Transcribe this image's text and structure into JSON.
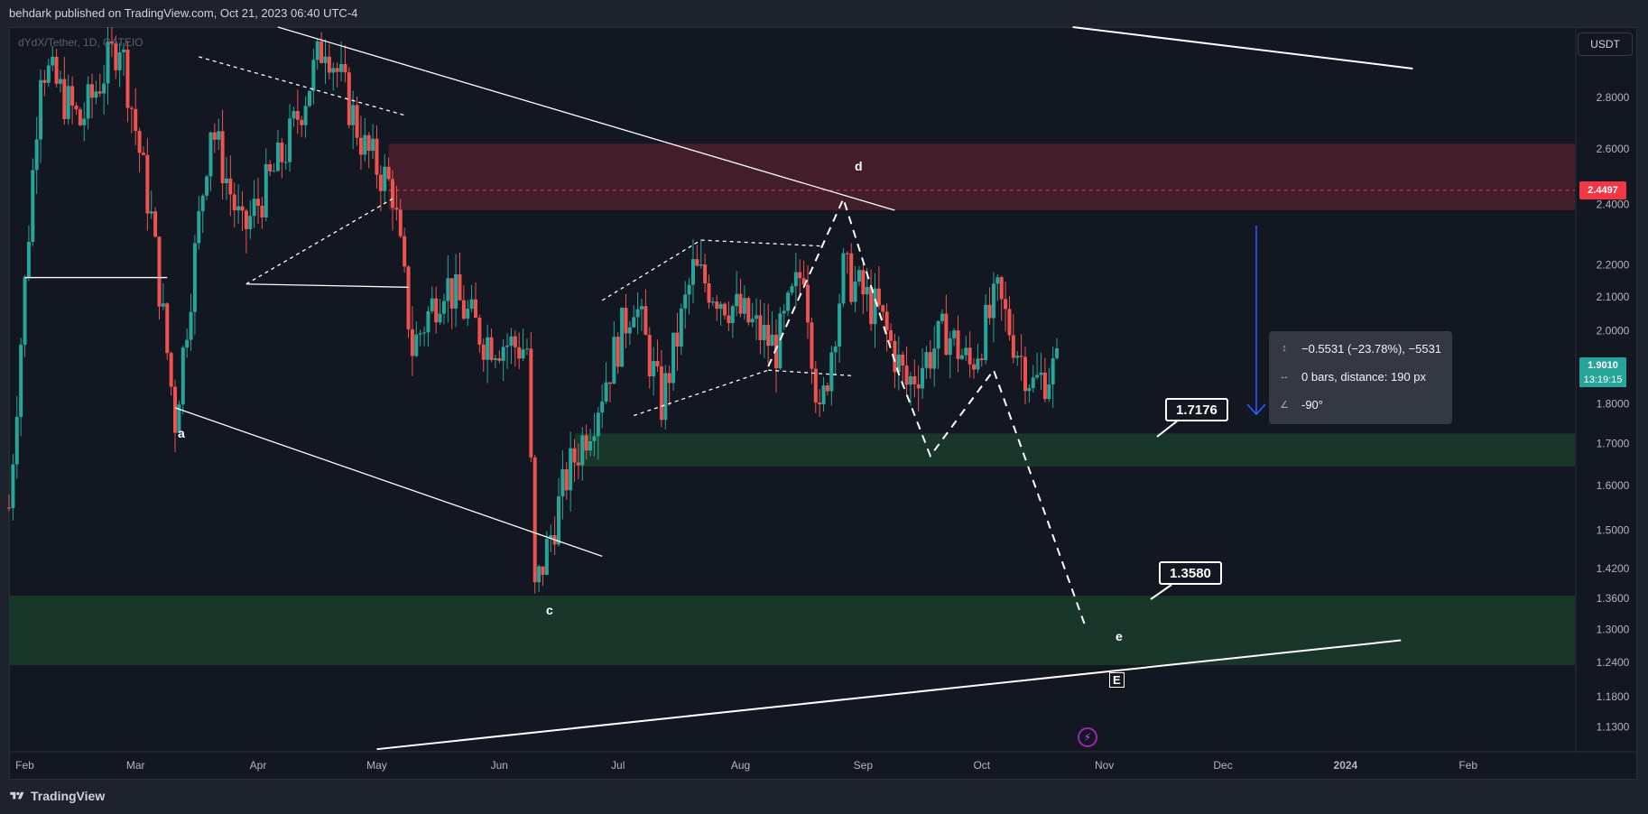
{
  "header": {
    "publisher_text": "behdark published on TradingView.com, Oct 21, 2023 06:40 UTC-4"
  },
  "symbol": {
    "label": "dYdX/Tether, 1D, GATEIO"
  },
  "currency_button": "USDT",
  "footer": {
    "brand": "TradingView",
    "logo_icon": "tradingview-logo-icon"
  },
  "measure": {
    "change": "−0.5531 (−23.78%), −5531",
    "bars": "0 bars, distance: 190 px",
    "angle": "-90°",
    "icons": [
      "price-range-icon",
      "bar-range-icon",
      "angle-icon"
    ]
  },
  "price_tags": {
    "resistance": "2.4497",
    "last_price": "1.9010",
    "countdown": "13:19:15"
  },
  "callouts": {
    "target1": "1.7176",
    "target2": "1.3580"
  },
  "wave_labels": {
    "a": "a",
    "c": "c",
    "d": "d",
    "e": "e",
    "E": "E"
  },
  "colors": {
    "background": "#131722",
    "up_candle": "#26a69a",
    "down_candle": "#ef5350",
    "supply_zone": "#4a1e2c",
    "demand_zone": "#1b3a2b",
    "resistance_tag": "#f23645",
    "measure_arrow": "#2962ff",
    "drawing": "#ffffff"
  },
  "chart_data": {
    "type": "candlestick",
    "title": "dYdX/Tether, 1D, GATEIO",
    "y_axis_scale": "log",
    "y_ticks": [
      "2.8000",
      "2.6000",
      "2.4000",
      "2.2000",
      "2.1000",
      "2.0000",
      "1.8000",
      "1.7000",
      "1.6000",
      "1.5000",
      "1.4200",
      "1.3600",
      "1.3000",
      "1.2400",
      "1.1800",
      "1.1300"
    ],
    "x_ticks": [
      "Feb",
      "Mar",
      "Apr",
      "May",
      "Jun",
      "Jul",
      "Aug",
      "Sep",
      "Oct",
      "Nov",
      "Dec",
      "2024",
      "Feb"
    ],
    "ylim": [
      1.09,
      3.1
    ],
    "last_price": 1.901,
    "resistance_line": 2.4497,
    "zones": [
      {
        "name": "supply",
        "top": 2.62,
        "bottom": 2.38
      },
      {
        "name": "demand-1",
        "top": 1.725,
        "bottom": 1.645
      },
      {
        "name": "demand-2",
        "top": 1.365,
        "bottom": 1.235
      }
    ],
    "price_path": [
      {
        "date": "2023-01-28",
        "price": 1.55
      },
      {
        "date": "2023-02-05",
        "price": 2.95
      },
      {
        "date": "2023-02-15",
        "price": 2.7
      },
      {
        "date": "2023-02-25",
        "price": 3.05
      },
      {
        "date": "2023-03-05",
        "price": 2.35
      },
      {
        "date": "2023-03-11",
        "price": 1.76
      },
      {
        "date": "2023-03-20",
        "price": 2.7
      },
      {
        "date": "2023-03-28",
        "price": 2.3
      },
      {
        "date": "2023-04-08",
        "price": 2.6
      },
      {
        "date": "2023-04-18",
        "price": 3.05
      },
      {
        "date": "2023-04-28",
        "price": 2.6
      },
      {
        "date": "2023-05-05",
        "price": 2.45
      },
      {
        "date": "2023-05-10",
        "price": 1.95
      },
      {
        "date": "2023-05-18",
        "price": 2.15
      },
      {
        "date": "2023-05-28",
        "price": 1.98
      },
      {
        "date": "2023-06-08",
        "price": 1.95
      },
      {
        "date": "2023-06-10",
        "price": 1.37
      },
      {
        "date": "2023-06-18",
        "price": 1.62
      },
      {
        "date": "2023-06-25",
        "price": 1.78
      },
      {
        "date": "2023-07-05",
        "price": 2.1
      },
      {
        "date": "2023-07-12",
        "price": 1.8
      },
      {
        "date": "2023-07-20",
        "price": 2.18
      },
      {
        "date": "2023-08-01",
        "price": 2.05
      },
      {
        "date": "2023-08-10",
        "price": 1.95
      },
      {
        "date": "2023-08-17",
        "price": 2.2
      },
      {
        "date": "2023-08-21",
        "price": 1.75
      },
      {
        "date": "2023-08-27",
        "price": 2.18
      },
      {
        "date": "2023-09-05",
        "price": 2.05
      },
      {
        "date": "2023-09-12",
        "price": 1.85
      },
      {
        "date": "2023-09-22",
        "price": 2.0
      },
      {
        "date": "2023-09-28",
        "price": 1.9
      },
      {
        "date": "2023-10-05",
        "price": 2.1
      },
      {
        "date": "2023-10-10",
        "price": 1.95
      },
      {
        "date": "2023-10-14",
        "price": 1.85
      },
      {
        "date": "2023-10-20",
        "price": 1.9
      }
    ],
    "annotations": [
      {
        "label": "a",
        "date": "2023-03-09",
        "price": 1.74
      },
      {
        "label": "c",
        "date": "2023-06-10",
        "price": 1.335
      },
      {
        "label": "d",
        "date": "2023-08-28",
        "price": 2.58
      },
      {
        "label": "e",
        "date": "2023-10-28",
        "price": 1.275
      },
      {
        "label": "E",
        "date": "2023-10-28",
        "price": 1.2
      }
    ],
    "projection_path": [
      {
        "date": "2023-09-10",
        "price": 1.88
      },
      {
        "date": "2023-09-18",
        "price": 1.67
      },
      {
        "date": "2023-10-04",
        "price": 1.89
      },
      {
        "date": "2023-10-27",
        "price": 1.31
      }
    ],
    "targets": [
      1.7176,
      1.358
    ]
  }
}
